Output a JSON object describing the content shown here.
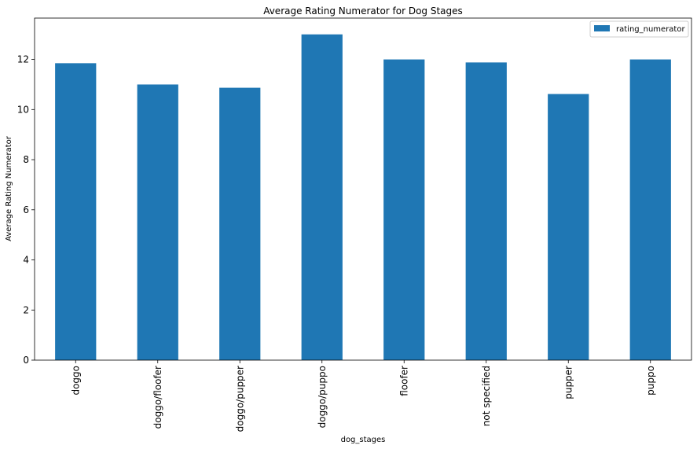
{
  "chart_data": {
    "type": "bar",
    "title": "Average Rating Numerator for Dog Stages",
    "xlabel": "dog_stages",
    "ylabel": "Average Rating Numerator",
    "categories": [
      "doggo",
      "doggo/floofer",
      "doggo/pupper",
      "doggo/puppo",
      "floofer",
      "not specified",
      "pupper",
      "puppo"
    ],
    "series": [
      {
        "name": "rating_numerator",
        "values": [
          11.85,
          11.0,
          10.87,
          13.0,
          12.0,
          11.88,
          10.62,
          12.0
        ],
        "color": "#1f77b4"
      }
    ],
    "ylim": [
      0,
      13.65
    ],
    "yticks": [
      0,
      2,
      4,
      6,
      8,
      10,
      12
    ],
    "grid": false,
    "legend_position": "top-right"
  }
}
